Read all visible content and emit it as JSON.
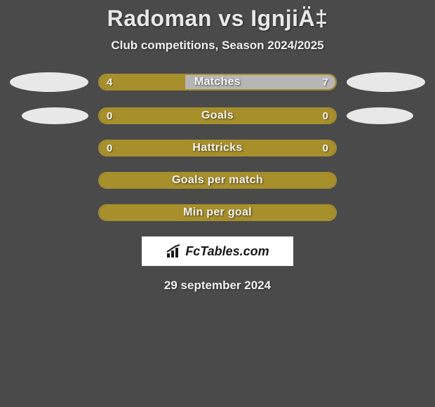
{
  "title": "Radoman vs IgnjiÄ‡",
  "subtitle": "Club competitions, Season 2024/2025",
  "date": "29 september 2024",
  "logo_text": "FcTables.com",
  "colors": {
    "olive": "#a78f2c",
    "olive_border": "#a78f2c",
    "neutral_fill": "#b6b6b6",
    "ellipse": "#e8e8e8",
    "bg": "#4a4a4a"
  },
  "bars": [
    {
      "label": "Matches",
      "left_val": "4",
      "right_val": "7",
      "left_pct": 36.4,
      "right_pct": 63.6,
      "left_color": "#a78f2c",
      "right_color": "#b6b6b6",
      "border_color": "#a78f2c",
      "show_values": true,
      "side_ellipses": 1
    },
    {
      "label": "Goals",
      "left_val": "0",
      "right_val": "0",
      "left_pct": 50,
      "right_pct": 50,
      "left_color": "#a78f2c",
      "right_color": "#a78f2c",
      "border_color": "#a78f2c",
      "show_values": true,
      "side_ellipses": 2
    },
    {
      "label": "Hattricks",
      "left_val": "0",
      "right_val": "0",
      "left_pct": 50,
      "right_pct": 50,
      "left_color": "#a78f2c",
      "right_color": "#a78f2c",
      "border_color": "#a78f2c",
      "show_values": true,
      "side_ellipses": 0
    },
    {
      "label": "Goals per match",
      "left_val": "",
      "right_val": "",
      "left_pct": 50,
      "right_pct": 50,
      "left_color": "#a78f2c",
      "right_color": "#a78f2c",
      "border_color": "#a78f2c",
      "show_values": false,
      "side_ellipses": 0
    },
    {
      "label": "Min per goal",
      "left_val": "",
      "right_val": "",
      "left_pct": 50,
      "right_pct": 50,
      "left_color": "#a78f2c",
      "right_color": "#a78f2c",
      "border_color": "#a78f2c",
      "show_values": false,
      "side_ellipses": 0
    }
  ],
  "typography": {
    "title_fontsize": 32,
    "subtitle_fontsize": 17,
    "bar_label_fontsize": 16,
    "bar_value_fontsize": 15,
    "date_fontsize": 17
  }
}
